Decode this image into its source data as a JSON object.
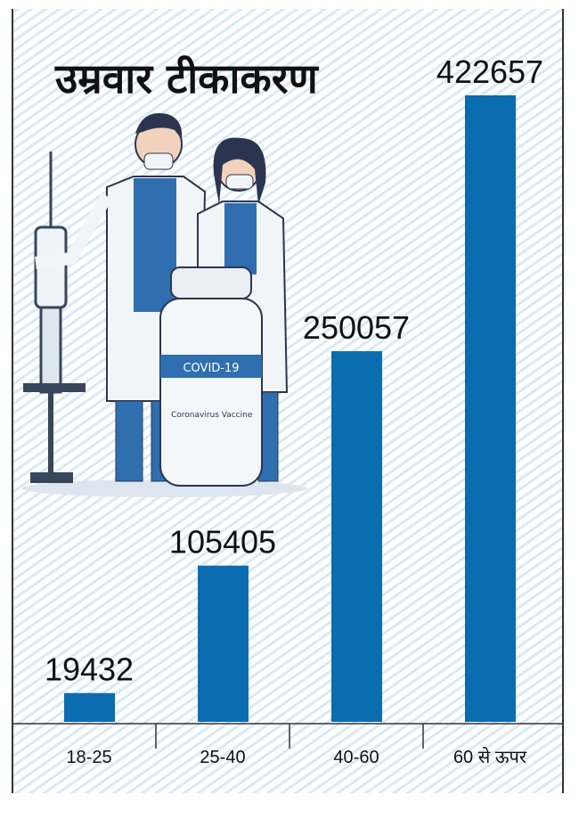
{
  "chart_data": {
    "type": "bar",
    "title": "उम्रवार टीकाकरण",
    "categories": [
      "18-25",
      "25-40",
      "40-60",
      "60 से ऊपर"
    ],
    "values": [
      19432,
      105405,
      250057,
      422657
    ],
    "color": "#0b6cb0",
    "annotations": [
      "COVID-19",
      "Coronavirus Vaccine"
    ]
  }
}
